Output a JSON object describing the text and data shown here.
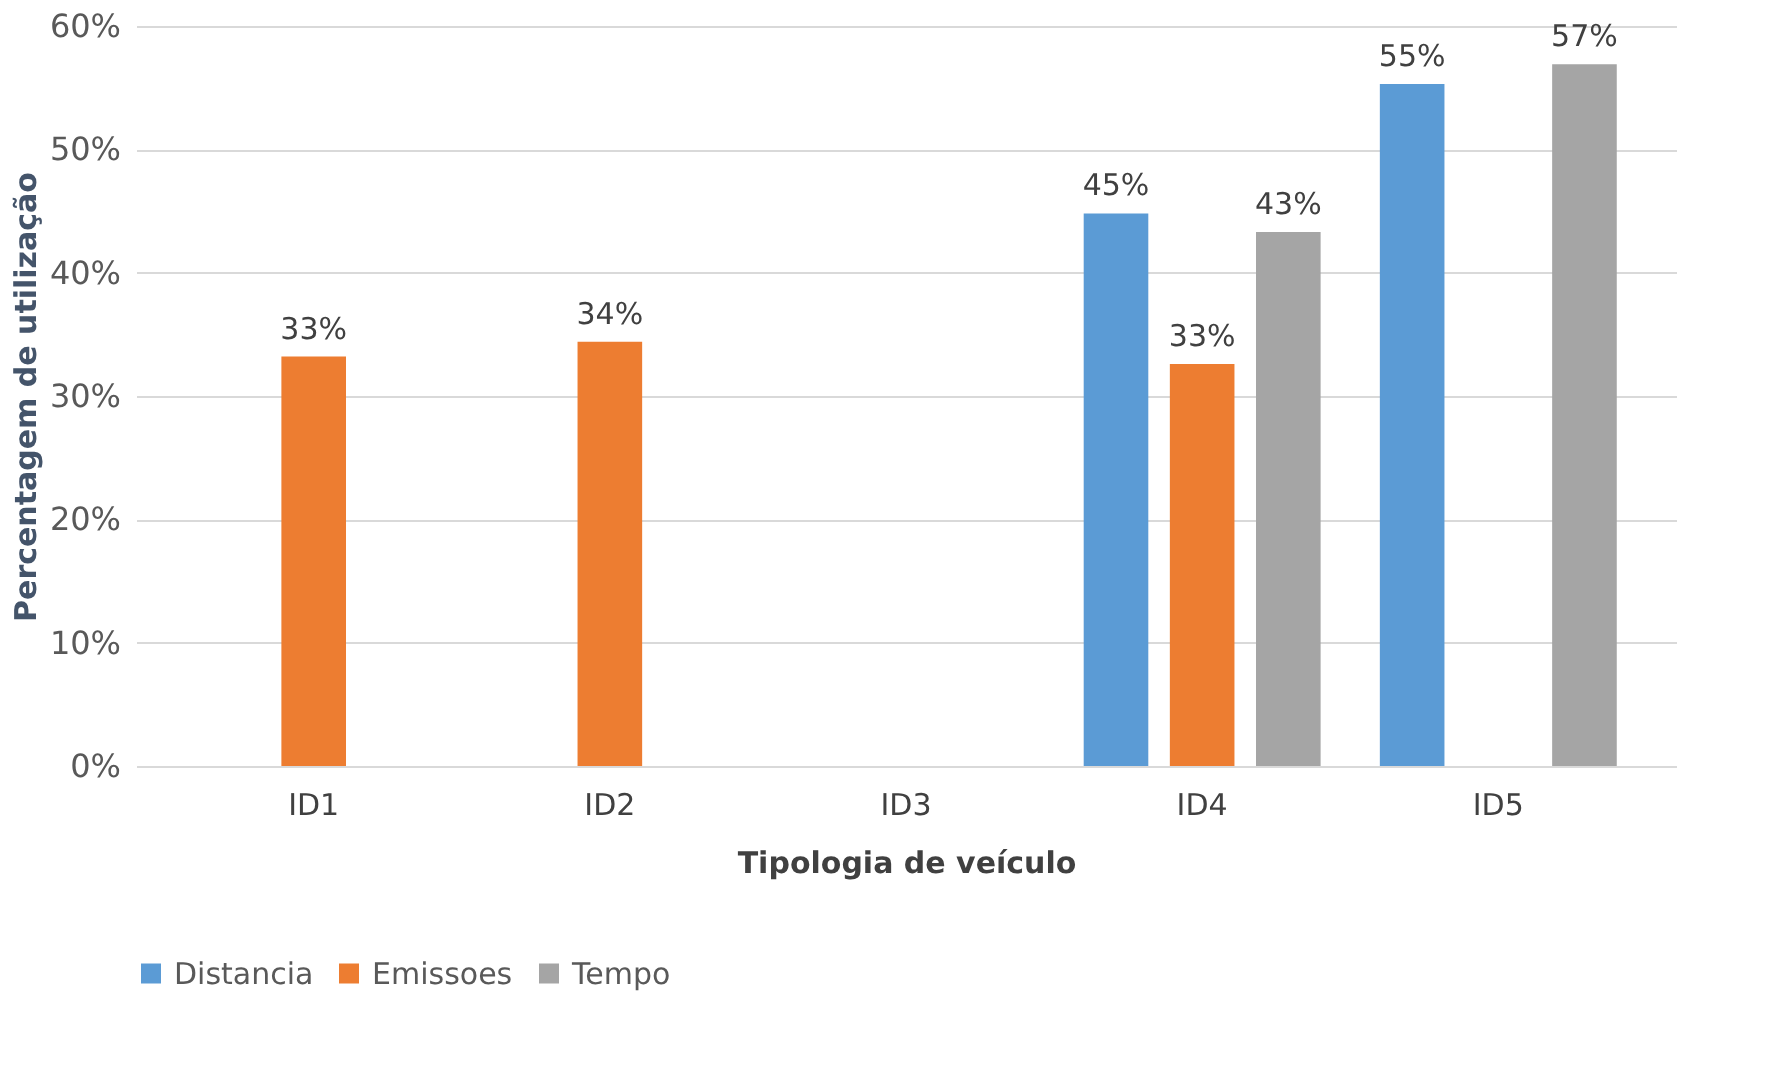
{
  "chart_data": {
    "type": "bar",
    "xlabel": "Tipologia de veículo",
    "ylabel": "Percentagem de utilização",
    "categories": [
      "ID1",
      "ID2",
      "ID3",
      "ID4",
      "ID5"
    ],
    "series": [
      {
        "name": "Distancia",
        "color": "#5b9bd5",
        "values": [
          null,
          null,
          null,
          44.8,
          55.3
        ],
        "value_labels": [
          null,
          null,
          null,
          "45%",
          "55%"
        ]
      },
      {
        "name": "Emissoes",
        "color": "#ed7d31",
        "values": [
          33.2,
          34.4,
          null,
          32.6,
          null
        ],
        "value_labels": [
          "33%",
          "34%",
          null,
          "33%",
          null
        ]
      },
      {
        "name": "Tempo",
        "color": "#a5a5a5",
        "values": [
          null,
          null,
          null,
          43.3,
          56.9
        ],
        "value_labels": [
          null,
          null,
          null,
          "43%",
          "57%"
        ]
      }
    ],
    "ylim": [
      0,
      60
    ],
    "yticks": [
      {
        "value": 0,
        "label": "0%"
      },
      {
        "value": 10,
        "label": "10%"
      },
      {
        "value": 20,
        "label": "20%"
      },
      {
        "value": 30,
        "label": "30%"
      },
      {
        "value": 40,
        "label": "40%"
      },
      {
        "value": 50,
        "label": "50%"
      },
      {
        "value": 60,
        "label": "60%"
      }
    ],
    "grid": "y",
    "legend": "bottom"
  }
}
